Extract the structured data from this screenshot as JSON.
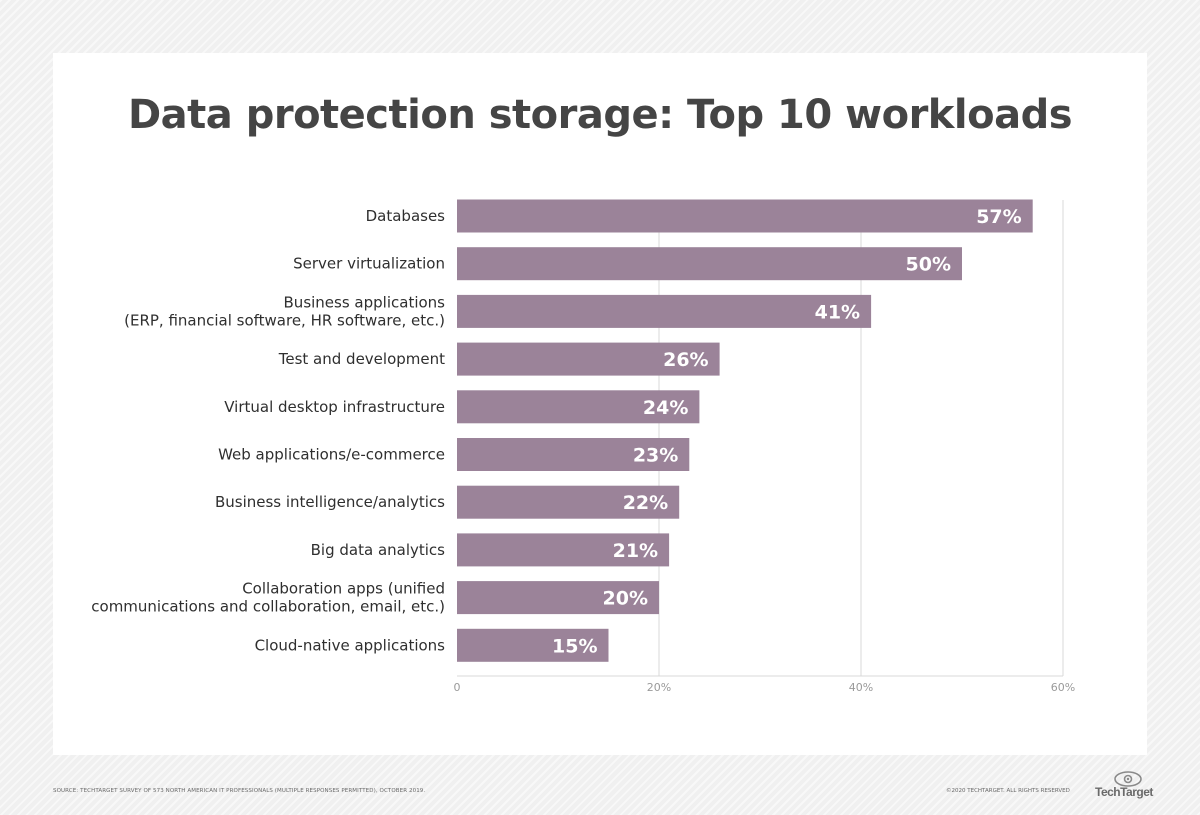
{
  "title": "Data protection storage: Top 10 workloads",
  "footer": {
    "source": "SOURCE: TECHTARGET SURVEY OF 573 NORTH AMERICAN IT PROFESSIONALS (MULTIPLE RESPONSES PERMITTED), OCTOBER 2019.",
    "copyright": "©2020 TECHTARGET. ALL RIGHTS RESERVED",
    "logo": "TechTarget"
  },
  "colors": {
    "bar": "#9b8399",
    "grid": "#d9d9d9",
    "title": "#454545"
  },
  "chart_data": {
    "type": "bar",
    "orientation": "horizontal",
    "title": "Data protection storage: Top 10 workloads",
    "categories": [
      [
        "Databases"
      ],
      [
        "Server virtualization"
      ],
      [
        "Business applications",
        "(ERP, financial software, HR software, etc.)"
      ],
      [
        "Test and development"
      ],
      [
        "Virtual desktop infrastructure"
      ],
      [
        "Web applications/e-commerce"
      ],
      [
        "Business intelligence/analytics"
      ],
      [
        "Big data analytics"
      ],
      [
        "Collaboration apps (unified",
        "communications and collaboration, email, etc.)"
      ],
      [
        "Cloud-native applications"
      ]
    ],
    "values": [
      57,
      50,
      41,
      26,
      24,
      23,
      22,
      21,
      20,
      15
    ],
    "value_labels": [
      "57%",
      "50%",
      "41%",
      "26%",
      "24%",
      "23%",
      "22%",
      "21%",
      "20%",
      "15%"
    ],
    "xlim": [
      0,
      60
    ],
    "xticks": [
      0,
      20,
      40,
      60
    ],
    "xtick_labels": [
      "0",
      "20%",
      "40%",
      "60%"
    ],
    "grid": true,
    "legend": "none"
  }
}
